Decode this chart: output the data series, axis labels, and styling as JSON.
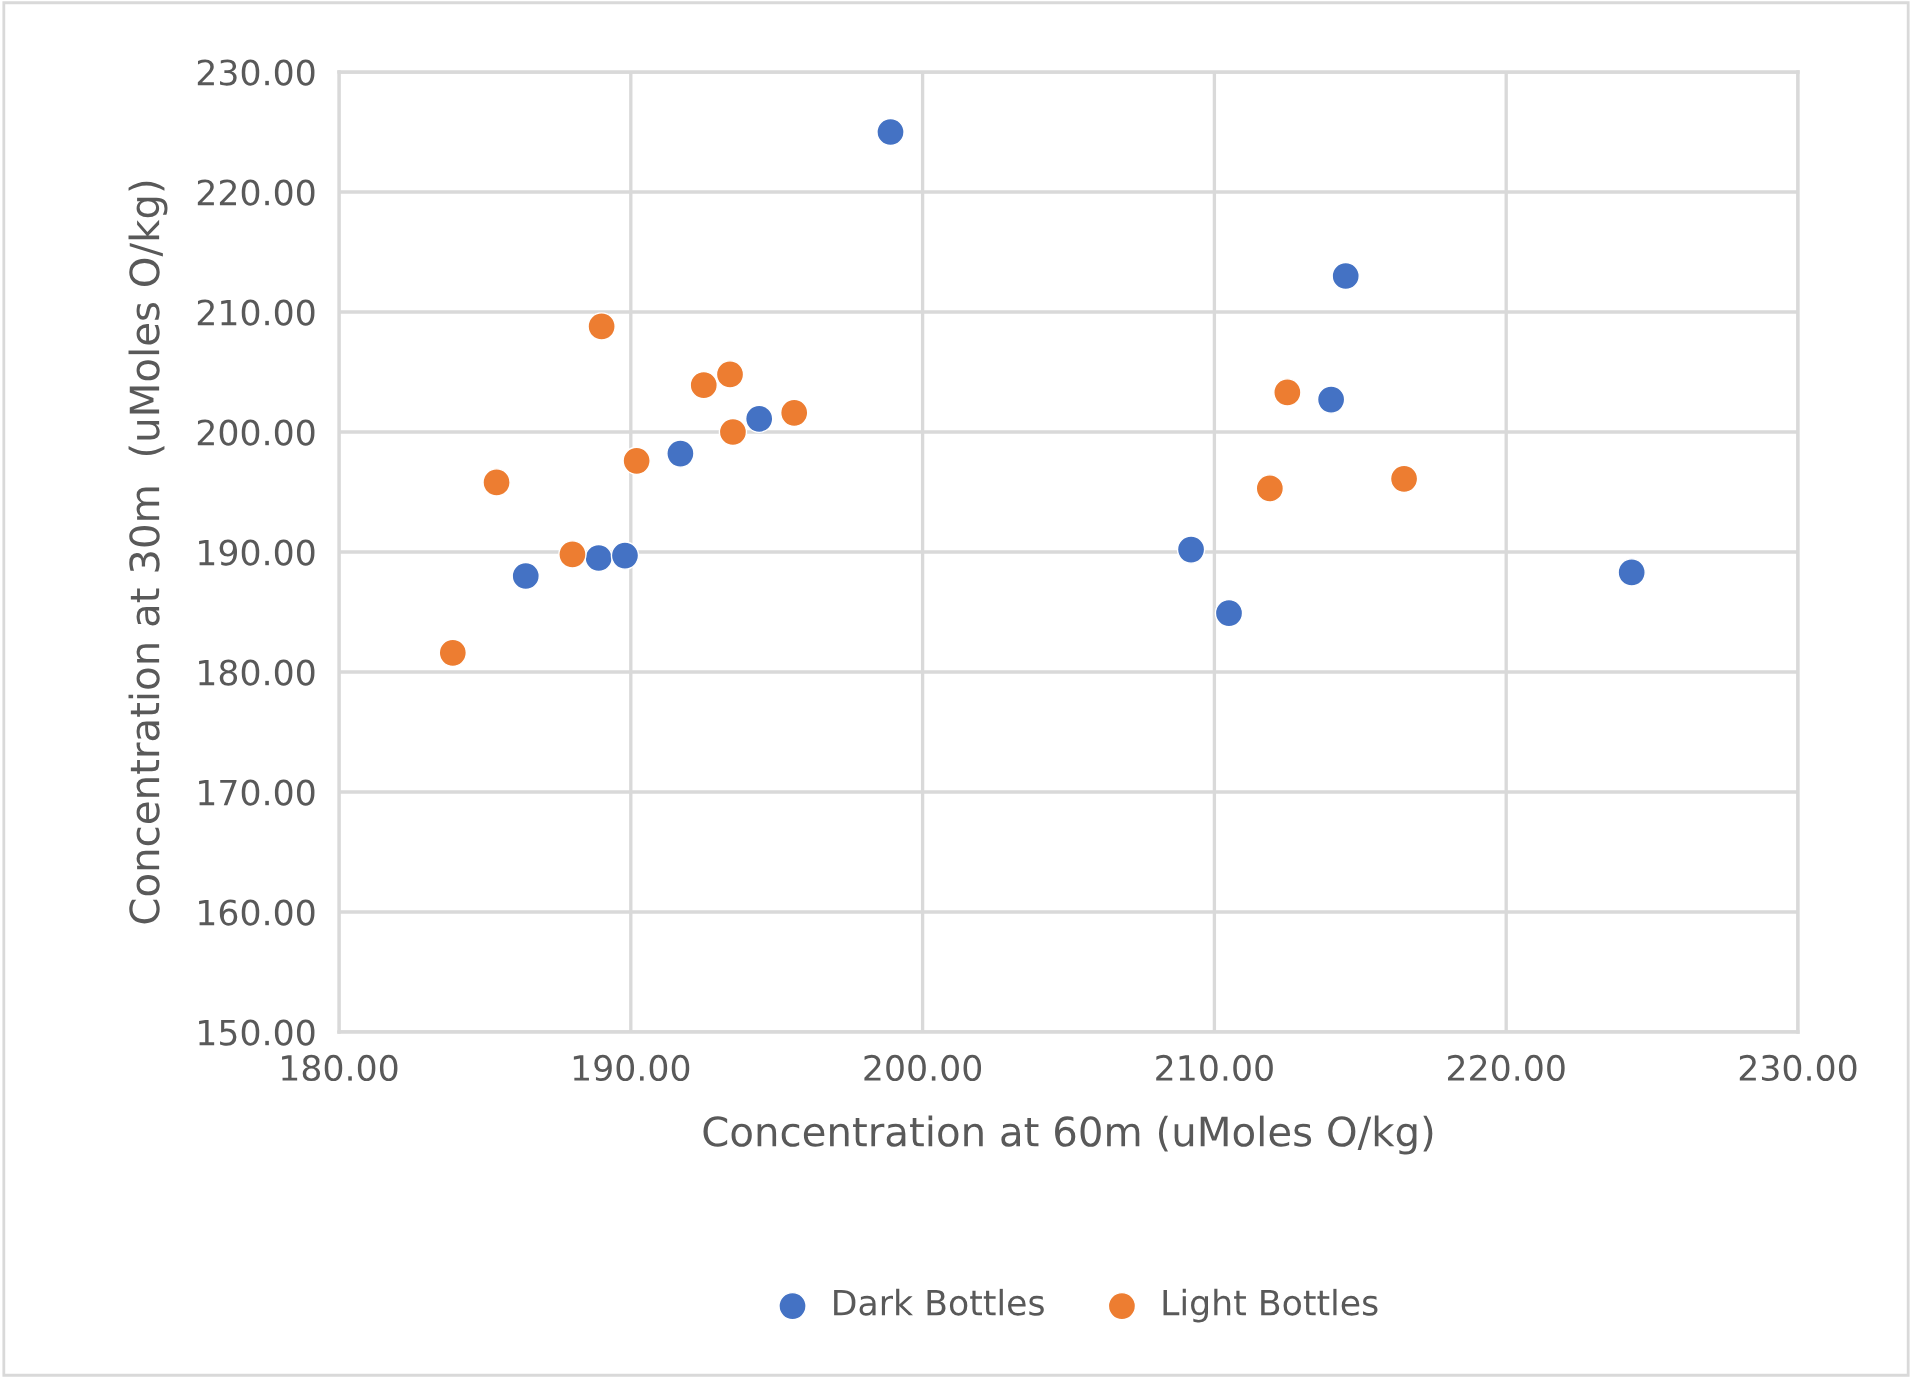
{
  "chart_data": {
    "type": "scatter",
    "xlabel": "Concentration at 60m (uMoles O/kg)",
    "ylabel": "Concentration at 30m  (uMoles O/kg)",
    "xlim": [
      180,
      230
    ],
    "xticks": [
      {
        "value": 180,
        "label": "180.00"
      },
      {
        "value": 190,
        "label": "190.00"
      },
      {
        "value": 200,
        "label": "200.00"
      },
      {
        "value": 210,
        "label": "210.00"
      },
      {
        "value": 220,
        "label": "220.00"
      },
      {
        "value": 230,
        "label": "230.00"
      }
    ],
    "ylim": [
      150,
      230
    ],
    "yticks": [
      {
        "value": 150,
        "label": "150.00"
      },
      {
        "value": 160,
        "label": "160.00"
      },
      {
        "value": 170,
        "label": "170.00"
      },
      {
        "value": 180,
        "label": "180.00"
      },
      {
        "value": 190,
        "label": "190.00"
      },
      {
        "value": 200,
        "label": "200.00"
      },
      {
        "value": 210,
        "label": "210.00"
      },
      {
        "value": 220,
        "label": "220.00"
      },
      {
        "value": 230,
        "label": "230.00"
      }
    ],
    "grid": true,
    "legend": "bottom",
    "marker": "circle",
    "series": [
      {
        "name": "Dark Bottles",
        "color": "#4472c4",
        "x": [
          198.9,
          186.4,
          188.9,
          189.8,
          191.7,
          194.4,
          214.5,
          214.0,
          209.2,
          210.5,
          224.3
        ],
        "values": [
          225.0,
          188.0,
          189.5,
          189.7,
          198.2,
          201.1,
          213.0,
          202.7,
          190.2,
          184.9,
          188.3
        ]
      },
      {
        "name": "Light Bottles",
        "color": "#ed7d31",
        "x": [
          183.9,
          185.4,
          188.0,
          189.0,
          190.2,
          192.5,
          193.4,
          193.5,
          195.6,
          212.5,
          211.9,
          216.5
        ],
        "values": [
          181.6,
          195.8,
          189.8,
          208.8,
          197.6,
          203.9,
          204.8,
          200.0,
          201.6,
          203.3,
          195.3,
          196.1
        ]
      }
    ]
  }
}
